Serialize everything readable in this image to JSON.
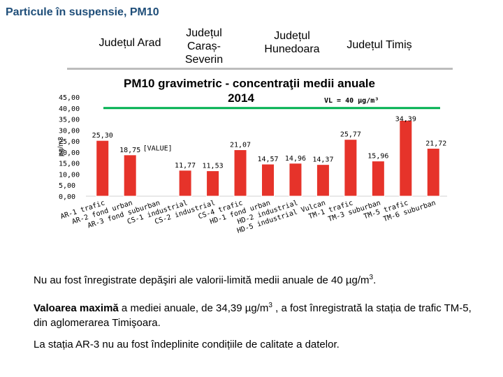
{
  "page": {
    "title": "Particule în suspensie, PM10",
    "counties": [
      "Județul Arad",
      "Județul Caraș-Severin",
      "Județul Hunedoara",
      "Județul Timiș"
    ],
    "notes": {
      "n1_text": "Nu au fost înregistrate depăşiri ale valorii-limită medii anuale de 40 µg/m",
      "n1_sup": "3",
      "n1_end": ".",
      "n2_bold": "Valoarea maximă",
      "n2_text": " a mediei anuale, de 34,39 µg/m",
      "n2_sup": "3",
      "n2_end": " , a fost înregistrată la stația de trafic TM-5, din aglomerarea Timişoara.",
      "n3_text": "La stația AR-3 nu au fost îndeplinite condițiile de calitate a datelor."
    }
  },
  "chart_data": {
    "type": "bar",
    "title": "PM10 gravimetric - concentraţii medii anuale",
    "subtitle": "2014",
    "ylabel": "µg/m3",
    "ylim": [
      0,
      45
    ],
    "yticks": [
      "0,00",
      "5,00",
      "10,00",
      "15,00",
      "20,00",
      "25,00",
      "30,00",
      "35,00",
      "40,00",
      "45,00"
    ],
    "limit_line": {
      "label": "VL = 40 µg/m³",
      "value": 40,
      "color": "#00b050"
    },
    "bar_color": "#e6332a",
    "categories": [
      "AR-1 trafic",
      "AR-2 fond urban",
      "AR-3 fond suburban",
      "CS-1 industrial",
      "CS-2 industrial",
      "CS-4 trafic",
      "HD-1 fond urban",
      "HD-2 industrial",
      "HD-5 industrial Vulcan",
      "TM-1 trafic",
      "TM-3 suburban",
      "TM-5 trafic",
      "TM-6 suburban"
    ],
    "values": [
      25.3,
      18.75,
      null,
      11.77,
      11.53,
      21.07,
      14.57,
      14.96,
      14.37,
      25.77,
      15.96,
      34.39,
      21.72
    ],
    "data_labels": [
      "25,30",
      "18,75",
      "[VALUE]",
      "11,77",
      "11,53",
      "21,07",
      "14,57",
      "14,96",
      "14,37",
      "25,77",
      "15,96",
      "34,39",
      "21,72"
    ],
    "grid": false
  }
}
